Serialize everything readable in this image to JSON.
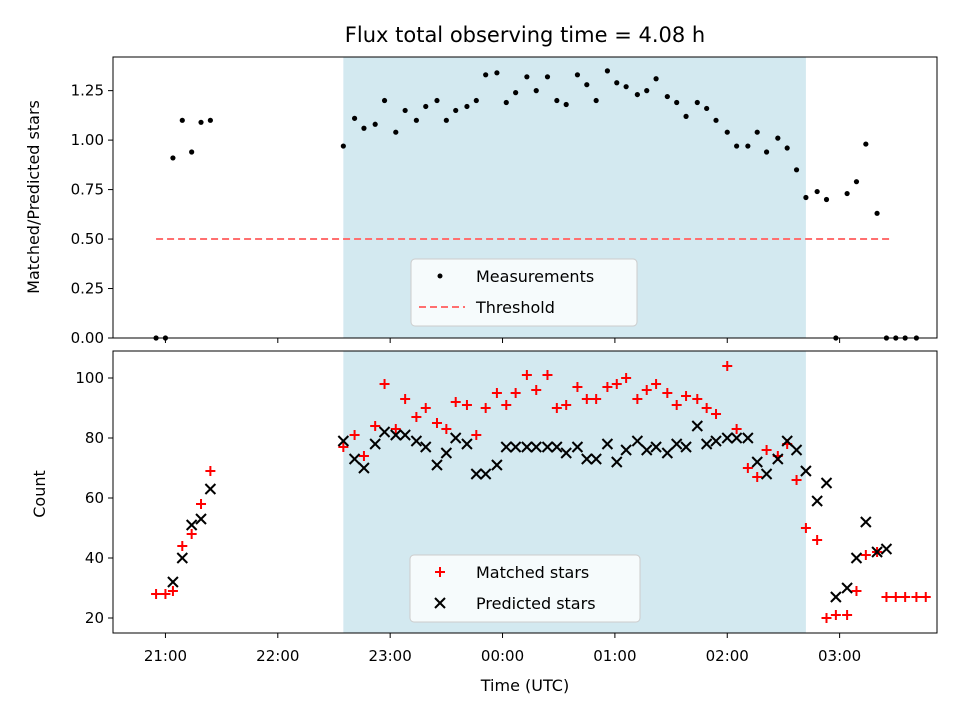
{
  "chart_data": [
    {
      "type": "scatter",
      "title": "Flux total observing time = 4.08 h",
      "ylabel": "Matched/Predicted stars",
      "ylim": [
        0,
        1.42
      ],
      "xlim": [
        "20:32",
        "03:52"
      ],
      "yticks": [
        "0.00",
        "0.25",
        "0.50",
        "0.75",
        "1.00",
        "1.25"
      ],
      "shaded_region": {
        "from": "22:35",
        "to": "02:42",
        "color": "#d3e9f0"
      },
      "legend": {
        "position": "lower-center",
        "entries": [
          "Measurements",
          "Threshold"
        ]
      },
      "threshold": {
        "name": "Threshold",
        "value": 0.5,
        "from": "20:55",
        "to": "03:28",
        "color": "#ff6f6f"
      },
      "series": [
        {
          "name": "Measurements",
          "marker": "dot",
          "color": "#000000",
          "points": [
            [
              "20:55",
              0
            ],
            [
              "21:00",
              0
            ],
            [
              "21:04",
              0.91
            ],
            [
              "21:09",
              1.1
            ],
            [
              "21:14",
              0.94
            ],
            [
              "21:19",
              1.09
            ],
            [
              "21:24",
              1.1
            ],
            [
              "22:35",
              0.97
            ],
            [
              "22:41",
              1.11
            ],
            [
              "22:46",
              1.06
            ],
            [
              "22:52",
              1.08
            ],
            [
              "22:57",
              1.2
            ],
            [
              "23:03",
              1.04
            ],
            [
              "23:08",
              1.15
            ],
            [
              "23:14",
              1.1
            ],
            [
              "23:19",
              1.17
            ],
            [
              "23:25",
              1.2
            ],
            [
              "23:30",
              1.1
            ],
            [
              "23:35",
              1.15
            ],
            [
              "23:41",
              1.17
            ],
            [
              "23:46",
              1.2
            ],
            [
              "23:51",
              1.33
            ],
            [
              "23:57",
              1.34
            ],
            [
              "00:02",
              1.19
            ],
            [
              "00:07",
              1.24
            ],
            [
              "00:13",
              1.32
            ],
            [
              "00:18",
              1.25
            ],
            [
              "00:24",
              1.32
            ],
            [
              "00:29",
              1.2
            ],
            [
              "00:34",
              1.18
            ],
            [
              "00:40",
              1.33
            ],
            [
              "00:45",
              1.28
            ],
            [
              "00:50",
              1.2
            ],
            [
              "00:56",
              1.35
            ],
            [
              "01:01",
              1.29
            ],
            [
              "01:06",
              1.27
            ],
            [
              "01:12",
              1.23
            ],
            [
              "01:17",
              1.25
            ],
            [
              "01:22",
              1.31
            ],
            [
              "01:28",
              1.22
            ],
            [
              "01:33",
              1.19
            ],
            [
              "01:38",
              1.12
            ],
            [
              "01:44",
              1.19
            ],
            [
              "01:49",
              1.16
            ],
            [
              "01:54",
              1.1
            ],
            [
              "02:00",
              1.04
            ],
            [
              "02:05",
              0.97
            ],
            [
              "02:11",
              0.97
            ],
            [
              "02:16",
              1.04
            ],
            [
              "02:21",
              0.94
            ],
            [
              "02:27",
              1.01
            ],
            [
              "02:32",
              0.96
            ],
            [
              "02:37",
              0.85
            ],
            [
              "02:42",
              0.71
            ],
            [
              "02:48",
              0.74
            ],
            [
              "02:53",
              0.7
            ],
            [
              "02:58",
              0
            ],
            [
              "03:04",
              0.73
            ],
            [
              "03:09",
              0.79
            ],
            [
              "03:14",
              0.98
            ],
            [
              "03:20",
              0.63
            ],
            [
              "03:25",
              0
            ],
            [
              "03:30",
              0
            ],
            [
              "03:35",
              0
            ],
            [
              "03:41",
              0
            ]
          ]
        }
      ]
    },
    {
      "type": "scatter",
      "xlabel": "Time (UTC)",
      "ylabel": "Count",
      "ylim": [
        15,
        109
      ],
      "xlim": [
        "20:32",
        "03:52"
      ],
      "yticks": [
        "20",
        "40",
        "60",
        "80",
        "100"
      ],
      "xticks": [
        "21:00",
        "22:00",
        "23:00",
        "00:00",
        "01:00",
        "02:00",
        "03:00"
      ],
      "shaded_region": {
        "from": "22:35",
        "to": "02:42",
        "color": "#d3e9f0"
      },
      "legend": {
        "position": "lower-center",
        "entries": [
          "Matched stars",
          "Predicted stars"
        ]
      },
      "series": [
        {
          "name": "Matched stars",
          "marker": "plus",
          "color": "#ff0000",
          "points": [
            [
              "20:55",
              28
            ],
            [
              "21:00",
              28
            ],
            [
              "21:04",
              29
            ],
            [
              "21:09",
              44
            ],
            [
              "21:14",
              48
            ],
            [
              "21:19",
              58
            ],
            [
              "21:24",
              69
            ],
            [
              "22:35",
              77
            ],
            [
              "22:41",
              81
            ],
            [
              "22:46",
              74
            ],
            [
              "22:52",
              84
            ],
            [
              "22:57",
              98
            ],
            [
              "23:03",
              83
            ],
            [
              "23:08",
              93
            ],
            [
              "23:14",
              87
            ],
            [
              "23:19",
              90
            ],
            [
              "23:25",
              85
            ],
            [
              "23:30",
              83
            ],
            [
              "23:35",
              92
            ],
            [
              "23:41",
              91
            ],
            [
              "23:46",
              81
            ],
            [
              "23:51",
              90
            ],
            [
              "23:57",
              95
            ],
            [
              "00:02",
              91
            ],
            [
              "00:07",
              95
            ],
            [
              "00:13",
              101
            ],
            [
              "00:18",
              96
            ],
            [
              "00:24",
              101
            ],
            [
              "00:29",
              90
            ],
            [
              "00:34",
              91
            ],
            [
              "00:40",
              97
            ],
            [
              "00:45",
              93
            ],
            [
              "00:50",
              93
            ],
            [
              "00:56",
              97
            ],
            [
              "01:01",
              98
            ],
            [
              "01:06",
              100
            ],
            [
              "01:12",
              93
            ],
            [
              "01:17",
              96
            ],
            [
              "01:22",
              98
            ],
            [
              "01:28",
              95
            ],
            [
              "01:33",
              91
            ],
            [
              "01:38",
              94
            ],
            [
              "01:44",
              93
            ],
            [
              "01:49",
              90
            ],
            [
              "01:54",
              88
            ],
            [
              "02:00",
              104
            ],
            [
              "02:05",
              83
            ],
            [
              "02:11",
              70
            ],
            [
              "02:16",
              67
            ],
            [
              "02:21",
              76
            ],
            [
              "02:27",
              74
            ],
            [
              "02:32",
              78
            ],
            [
              "02:37",
              66
            ],
            [
              "02:42",
              50
            ],
            [
              "02:48",
              46
            ],
            [
              "02:53",
              20
            ],
            [
              "02:58",
              21
            ],
            [
              "03:04",
              21
            ],
            [
              "03:09",
              29
            ],
            [
              "03:14",
              41
            ],
            [
              "03:20",
              42
            ],
            [
              "03:25",
              27
            ],
            [
              "03:30",
              27
            ],
            [
              "03:35",
              27
            ],
            [
              "03:41",
              27
            ],
            [
              "03:46",
              27
            ]
          ]
        },
        {
          "name": "Predicted stars",
          "marker": "cross",
          "color": "#000000",
          "points": [
            [
              "21:04",
              32
            ],
            [
              "21:09",
              40
            ],
            [
              "21:14",
              51
            ],
            [
              "21:19",
              53
            ],
            [
              "21:24",
              63
            ],
            [
              "22:35",
              79
            ],
            [
              "22:41",
              73
            ],
            [
              "22:46",
              70
            ],
            [
              "22:52",
              78
            ],
            [
              "22:57",
              82
            ],
            [
              "23:03",
              81
            ],
            [
              "23:08",
              81
            ],
            [
              "23:14",
              79
            ],
            [
              "23:19",
              77
            ],
            [
              "23:25",
              71
            ],
            [
              "23:30",
              75
            ],
            [
              "23:35",
              80
            ],
            [
              "23:41",
              78
            ],
            [
              "23:46",
              68
            ],
            [
              "23:51",
              68
            ],
            [
              "23:57",
              71
            ],
            [
              "00:02",
              77
            ],
            [
              "00:07",
              77
            ],
            [
              "00:13",
              77
            ],
            [
              "00:18",
              77
            ],
            [
              "00:24",
              77
            ],
            [
              "00:29",
              77
            ],
            [
              "00:34",
              75
            ],
            [
              "00:40",
              77
            ],
            [
              "00:45",
              73
            ],
            [
              "00:50",
              73
            ],
            [
              "00:56",
              78
            ],
            [
              "01:01",
              72
            ],
            [
              "01:06",
              76
            ],
            [
              "01:12",
              79
            ],
            [
              "01:17",
              76
            ],
            [
              "01:22",
              77
            ],
            [
              "01:28",
              75
            ],
            [
              "01:33",
              78
            ],
            [
              "01:38",
              77
            ],
            [
              "01:44",
              84
            ],
            [
              "01:49",
              78
            ],
            [
              "01:54",
              79
            ],
            [
              "02:00",
              80
            ],
            [
              "02:05",
              80
            ],
            [
              "02:11",
              80
            ],
            [
              "02:16",
              72
            ],
            [
              "02:21",
              68
            ],
            [
              "02:27",
              73
            ],
            [
              "02:32",
              79
            ],
            [
              "02:37",
              76
            ],
            [
              "02:42",
              69
            ],
            [
              "02:48",
              59
            ],
            [
              "02:53",
              65
            ],
            [
              "02:58",
              27
            ],
            [
              "03:04",
              30
            ],
            [
              "03:09",
              40
            ],
            [
              "03:14",
              52
            ],
            [
              "03:20",
              42
            ],
            [
              "03:25",
              43
            ]
          ]
        }
      ]
    }
  ]
}
